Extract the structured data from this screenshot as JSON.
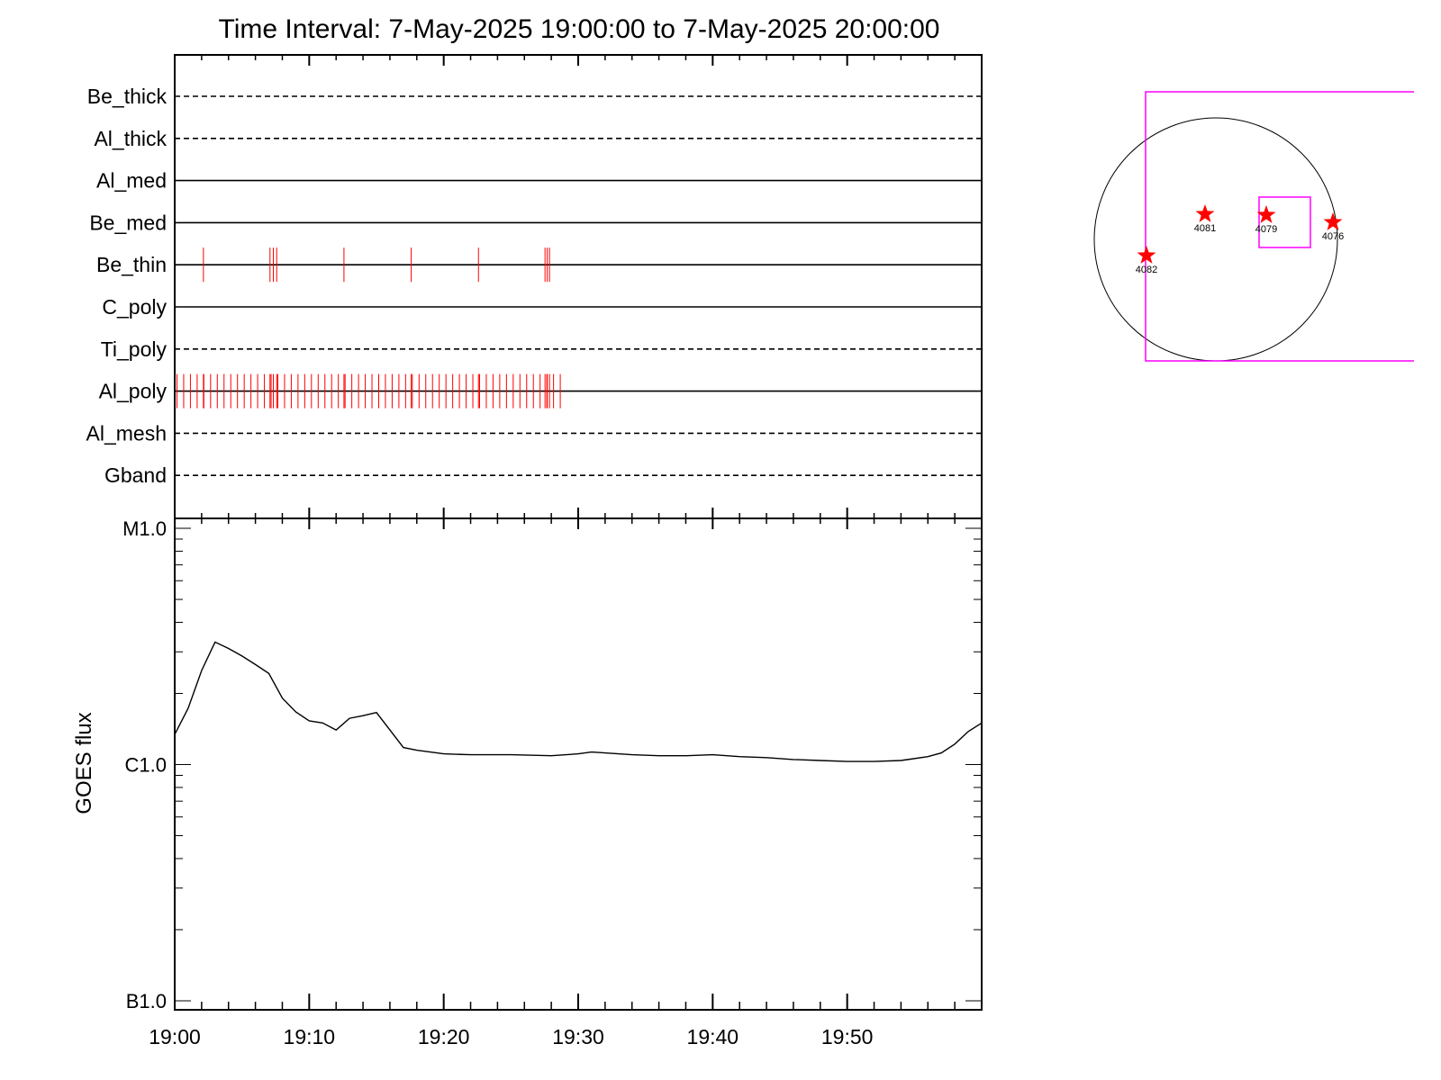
{
  "title": "Time Interval:  7-May-2025 19:00:00 to  7-May-2025 20:00:00",
  "colors": {
    "axis": "#000000",
    "event_ticks": "#ff0000",
    "fov_box": "#ff00ff",
    "markers": "#ff0000"
  },
  "chart_data": [
    {
      "type": "timeline",
      "x_range": [
        "19:00",
        "20:00"
      ],
      "rows": [
        {
          "name": "Be_thick",
          "line": "dashed",
          "events": []
        },
        {
          "name": "Al_thick",
          "line": "dashed",
          "events": []
        },
        {
          "name": "Al_med",
          "line": "solid",
          "events": []
        },
        {
          "name": "Be_med",
          "line": "solid",
          "events": []
        },
        {
          "name": "Be_thin",
          "line": "solid",
          "events": [
            "19:02:08",
            "19:07:05",
            "19:07:20",
            "19:07:35",
            "19:12:35",
            "19:17:35",
            "19:22:35",
            "19:27:32",
            "19:27:42",
            "19:27:52"
          ]
        },
        {
          "name": "C_poly",
          "line": "solid",
          "events": []
        },
        {
          "name": "Ti_poly",
          "line": "dashed",
          "events": []
        },
        {
          "name": "Al_poly",
          "line": "solid",
          "event_range": [
            "19:00:10",
            "19:29:00"
          ],
          "event_spacing_s": 30,
          "events": [
            "19:02:08",
            "19:07:05",
            "19:07:20",
            "19:07:35",
            "19:12:35",
            "19:17:35",
            "19:22:35",
            "19:27:32",
            "19:27:42",
            "19:27:52"
          ]
        },
        {
          "name": "Al_mesh",
          "line": "dashed",
          "events": []
        },
        {
          "name": "Gband",
          "line": "dashed",
          "events": []
        }
      ]
    },
    {
      "type": "line",
      "ylabel": "GOES flux",
      "yscale": "log",
      "ylim": [
        1e-07,
        1e-05
      ],
      "y_ticks": [
        {
          "label": "B1.0",
          "value": 1e-07
        },
        {
          "label": "C1.0",
          "value": 1e-06
        },
        {
          "label": "M1.0",
          "value": 1e-05
        }
      ],
      "xlim": [
        "19:00",
        "20:00"
      ],
      "x_ticks": [
        "19:00",
        "19:10",
        "19:20",
        "19:30",
        "19:40",
        "19:50"
      ],
      "series": [
        {
          "x": [
            "19:00",
            "19:01",
            "19:02",
            "19:03",
            "19:04",
            "19:05",
            "19:06",
            "19:07",
            "19:08",
            "19:09",
            "19:10",
            "19:11",
            "19:12",
            "19:13",
            "19:14",
            "19:15",
            "19:16",
            "19:17",
            "19:18",
            "19:19",
            "19:20",
            "19:22",
            "19:25",
            "19:28",
            "19:30",
            "19:31",
            "19:32",
            "19:34",
            "19:36",
            "19:38",
            "19:40",
            "19:42",
            "19:44",
            "19:46",
            "19:48",
            "19:50",
            "19:52",
            "19:54",
            "19:56",
            "19:57",
            "19:58",
            "19:59",
            "20:00"
          ],
          "y": [
            1.34e-06,
            1.73e-06,
            2.5e-06,
            3.3e-06,
            3.1e-06,
            2.88e-06,
            2.65e-06,
            2.43e-06,
            1.91e-06,
            1.67e-06,
            1.53e-06,
            1.5e-06,
            1.4e-06,
            1.57e-06,
            1.61e-06,
            1.66e-06,
            1.4e-06,
            1.18e-06,
            1.15e-06,
            1.13e-06,
            1.11e-06,
            1.1e-06,
            1.1e-06,
            1.09e-06,
            1.11e-06,
            1.13e-06,
            1.12e-06,
            1.1e-06,
            1.09e-06,
            1.09e-06,
            1.1e-06,
            1.08e-06,
            1.07e-06,
            1.05e-06,
            1.04e-06,
            1.03e-06,
            1.03e-06,
            1.04e-06,
            1.08e-06,
            1.12e-06,
            1.22e-06,
            1.38e-06,
            1.5e-06
          ]
        }
      ]
    }
  ],
  "sun_map": {
    "regions": [
      {
        "label": "4082"
      },
      {
        "label": "4081"
      },
      {
        "label": "4079"
      },
      {
        "label": "4076"
      }
    ]
  }
}
